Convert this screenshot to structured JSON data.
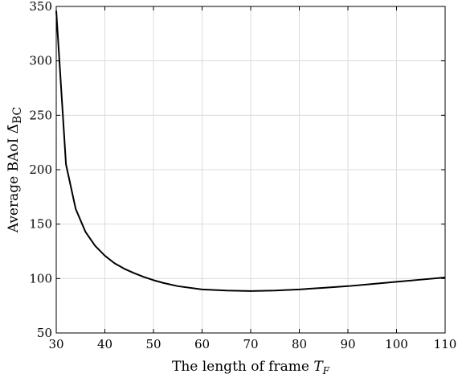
{
  "chart_data": {
    "type": "line",
    "xlabel_text": "The length of frame ",
    "xlabel_var": "T",
    "xlabel_sub": "F",
    "ylabel_text": "Average BAoI ",
    "ylabel_var": "Δ̄",
    "ylabel_sub": "BC",
    "xlim": [
      30,
      110
    ],
    "ylim": [
      50,
      350
    ],
    "xticks": [
      30,
      40,
      50,
      60,
      70,
      80,
      90,
      100,
      110
    ],
    "yticks": [
      50,
      100,
      150,
      200,
      250,
      300,
      350
    ],
    "grid": true,
    "series": [
      {
        "color": "#000000",
        "x": [
          30,
          32,
          34,
          36,
          38,
          40,
          42,
          44,
          46,
          48,
          50,
          52,
          55,
          60,
          65,
          70,
          75,
          80,
          85,
          90,
          95,
          100,
          105,
          110
        ],
        "y": [
          346,
          205,
          164,
          143,
          130,
          121,
          114,
          109,
          105,
          101.5,
          98.5,
          96,
          93,
          90,
          89,
          88.5,
          89,
          90,
          91.5,
          93,
          95,
          97,
          99,
          101
        ]
      }
    ]
  }
}
